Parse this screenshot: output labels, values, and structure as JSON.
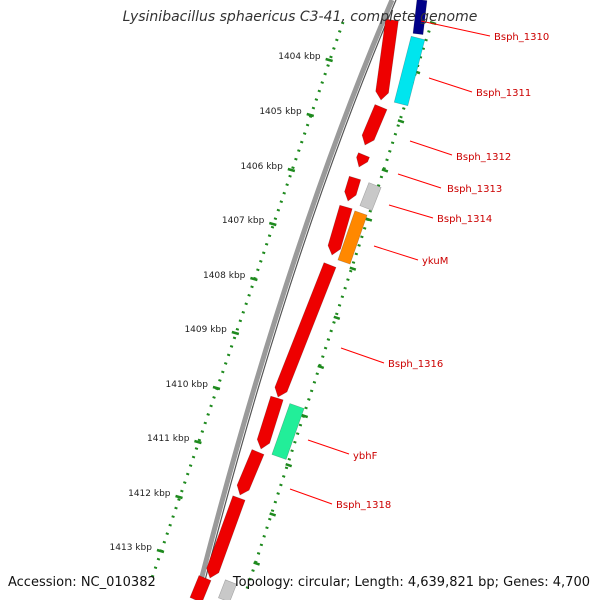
{
  "title": "Lysinibacillus sphaericus C3-41, complete genome",
  "footer": {
    "accession": "Accession: NC_010382",
    "summary": "Topology: circular; Length: 4,639,821 bp; Genes: 4,700"
  },
  "colors": {
    "backbone_outer": "#9a9a9a",
    "backbone_inner": "#555555",
    "ruler_dots": "#1e8a1e",
    "label_line": "#ff0000",
    "label_text": "#cc0000",
    "gene_red": "#ee0000",
    "gene_grey": "#c8c8c8",
    "gene_cyan": "#00e5ee",
    "gene_orange": "#ff8800",
    "gene_mint": "#22ee99",
    "gene_navy": "#000088"
  },
  "ruler_ticks": [
    {
      "label": "1404 kbp"
    },
    {
      "label": "1405 kbp"
    },
    {
      "label": "1406 kbp"
    },
    {
      "label": "1407 kbp"
    },
    {
      "label": "1408 kbp"
    },
    {
      "label": "1409 kbp"
    },
    {
      "label": "1410 kbp"
    },
    {
      "label": "1411 kbp"
    },
    {
      "label": "1412 kbp"
    },
    {
      "label": "1413 kbp"
    }
  ],
  "gene_labels": [
    {
      "name": "Bsph_1310"
    },
    {
      "name": "Bsph_1311"
    },
    {
      "name": "Bsph_1312"
    },
    {
      "name": "Bsph_1313"
    },
    {
      "name": "Bsph_1314"
    },
    {
      "name": "ykuM"
    },
    {
      "name": "Bsph_1316"
    },
    {
      "name": "ybhF"
    },
    {
      "name": "Bsph_1318"
    }
  ]
}
